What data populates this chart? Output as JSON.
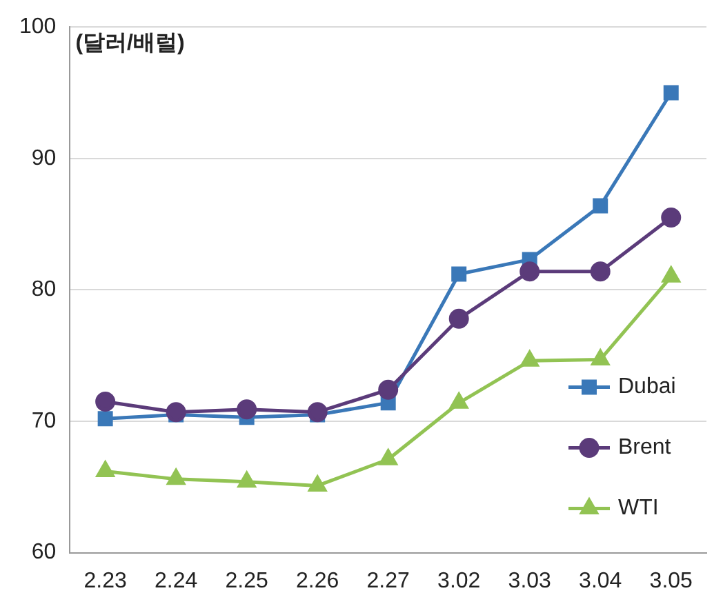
{
  "chart_data": {
    "type": "line",
    "ylabel": "(달러/배럴)",
    "categories": [
      "2.23",
      "2.24",
      "2.25",
      "2.26",
      "2.27",
      "3.02",
      "3.03",
      "3.04",
      "3.05"
    ],
    "series": [
      {
        "name": "Dubai",
        "color": "#3a78b8",
        "marker": "square",
        "values": [
          70.2,
          70.5,
          70.3,
          70.5,
          71.4,
          81.2,
          82.3,
          86.4,
          95
        ]
      },
      {
        "name": "Brent",
        "color": "#5b3b7a",
        "marker": "circle",
        "values": [
          71.5,
          70.7,
          70.9,
          70.7,
          72.4,
          77.8,
          81.4,
          81.4,
          85.5
        ]
      },
      {
        "name": "WTI",
        "color": "#92c353",
        "marker": "triangle",
        "values": [
          66.2,
          65.6,
          65.4,
          65.1,
          67.1,
          71.4,
          74.6,
          74.7,
          81
        ]
      }
    ],
    "ylim": [
      60,
      100
    ],
    "yticks": [
      60,
      70,
      80,
      90,
      100
    ],
    "grid": "y",
    "legend": "bottom right",
    "line_style": "solid"
  }
}
